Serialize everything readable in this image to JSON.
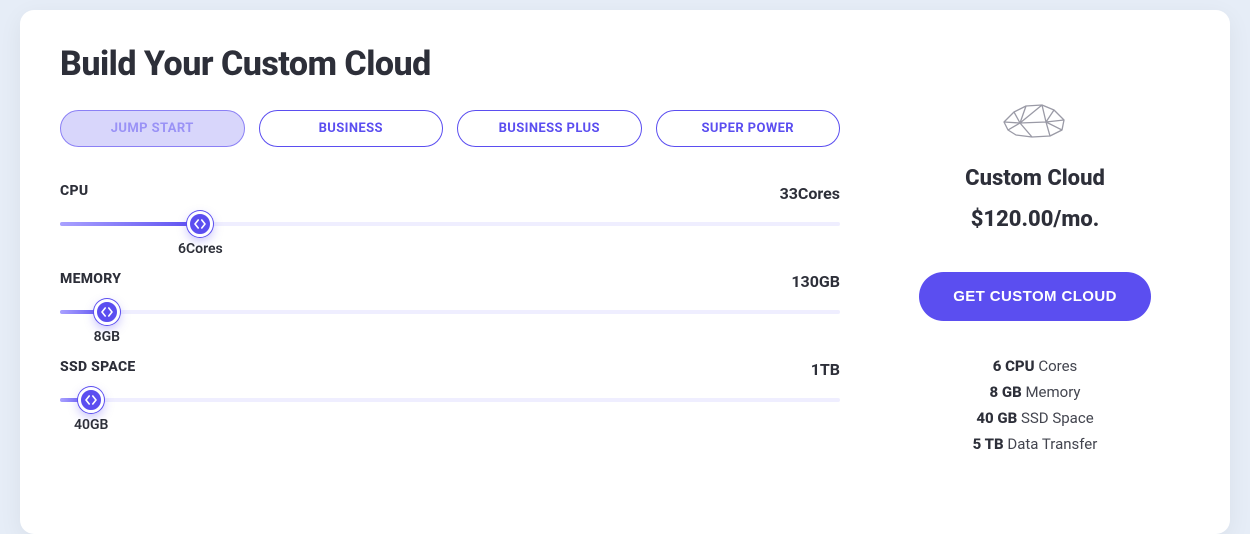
{
  "colors": {
    "page_bg": "#e6edf7",
    "card_bg": "#ffffff",
    "text": "#2d2f39",
    "accent": "#5b4ef0",
    "accent_light": "#d8d6fb",
    "accent_border": "#8b80f5",
    "accent_faded_text": "#9a92f6",
    "track_bg": "#efeeff",
    "fill_gradient_start": "#a9a1ff",
    "fill_gradient_end": "#5b4ef0",
    "subtext": "#43454f"
  },
  "title": "Build Your Custom Cloud",
  "presets": [
    {
      "label": "JUMP START",
      "active": true
    },
    {
      "label": "BUSINESS",
      "active": false
    },
    {
      "label": "BUSINESS PLUS",
      "active": false
    },
    {
      "label": "SUPER POWER",
      "active": false
    }
  ],
  "sliders": {
    "cpu": {
      "label": "CPU",
      "max_label": "33Cores",
      "max_value": 33,
      "value": 6,
      "value_label": "6Cores",
      "fill_percent": 18
    },
    "memory": {
      "label": "MEMORY",
      "max_label": "130GB",
      "max_value": 130,
      "value": 8,
      "value_label": "8GB",
      "fill_percent": 6
    },
    "ssd": {
      "label": "SSD SPACE",
      "max_label": "1TB",
      "max_value": 1000,
      "value": 40,
      "value_label": "40GB",
      "fill_percent": 4
    }
  },
  "summary": {
    "product_title": "Custom Cloud",
    "price": "$120.00/mo.",
    "cta": "GET CUSTOM CLOUD",
    "specs": [
      {
        "bold": "6 CPU",
        "rest": " Cores"
      },
      {
        "bold": "8 GB",
        "rest": " Memory"
      },
      {
        "bold": "40 GB",
        "rest": " SSD Space"
      },
      {
        "bold": "5 TB",
        "rest": " Data Transfer"
      }
    ]
  }
}
